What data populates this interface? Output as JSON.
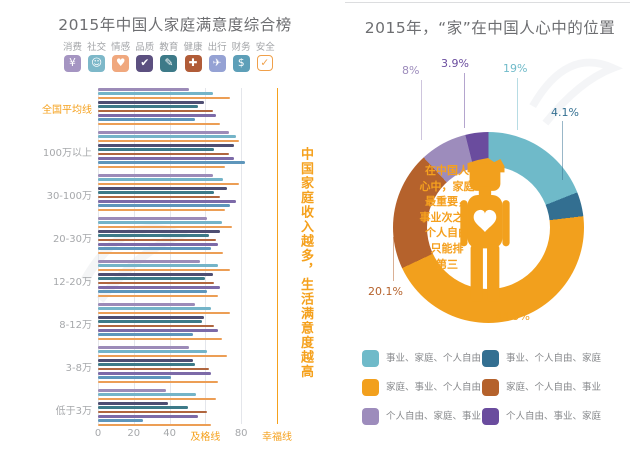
{
  "left_chart": {
    "icons": [
      {
        "name": "money-icon",
        "glyph": "¥",
        "tile_color": "#a595c2"
      },
      {
        "name": "people-icon",
        "glyph": "☺",
        "tile_color": "#7db8c9"
      },
      {
        "name": "hearts-icon",
        "glyph": "♥",
        "tile_color": "#f0a87e"
      },
      {
        "name": "thumbs-up-icon",
        "glyph": "✔",
        "tile_color": "#5c5080"
      },
      {
        "name": "graduation-icon",
        "glyph": "✎",
        "tile_color": "#3d7a88"
      },
      {
        "name": "stethoscope-icon",
        "glyph": "✚",
        "tile_color": "#b15c38"
      },
      {
        "name": "airplane-icon",
        "glyph": "✈",
        "tile_color": "#95a2d4"
      },
      {
        "name": "piggy-bank-icon",
        "glyph": "$",
        "tile_color": "#5d9fb8"
      },
      {
        "name": "shield-icon",
        "glyph": "✓",
        "tile_color": "outline"
      }
    ]
  },
  "right_chart": {
    "center_text_display": "在中国人\n心中，家庭\n最重要，\n事业次之，\n个人自由\n只能排\n第三"
  },
  "chart_data": [
    {
      "type": "bar",
      "orientation": "horizontal",
      "title": "2015年中国人家庭满意度综合榜",
      "annotation": "中国家庭收入越多，生活满意度越高",
      "xlim": [
        0,
        100
      ],
      "grid": true,
      "x_ticks": [
        {
          "value": 0,
          "label": "0"
        },
        {
          "value": 20,
          "label": "20"
        },
        {
          "value": 40,
          "label": "40"
        },
        {
          "value": 60,
          "label": "及格线",
          "accent": true
        },
        {
          "value": 80,
          "label": "80"
        },
        {
          "value": 100,
          "label": "幸福线",
          "accent": true,
          "accent_line": true
        }
      ],
      "groups": [
        "全国平均线",
        "100万以上",
        "30-100万",
        "20-30万",
        "12-20万",
        "8-12万",
        "3-8万",
        "低于3万"
      ],
      "highlight_group": "全国平均线",
      "series": [
        {
          "name": "消费",
          "color": "#9c8bb8",
          "values": [
            51,
            73,
            64,
            61,
            57,
            54,
            51,
            38
          ]
        },
        {
          "name": "社交",
          "color": "#74b4c8",
          "values": [
            64,
            77,
            70,
            69,
            67,
            63,
            61,
            55
          ]
        },
        {
          "name": "情感",
          "color": "#ec9e55",
          "values": [
            74,
            79,
            79,
            75,
            74,
            74,
            72,
            66
          ]
        },
        {
          "name": "品质",
          "color": "#4e4e72",
          "values": [
            59,
            76,
            72,
            68,
            64,
            59,
            53,
            39
          ]
        },
        {
          "name": "教育",
          "color": "#3d7a88",
          "values": [
            56,
            65,
            65,
            62,
            60,
            58,
            54,
            50
          ]
        },
        {
          "name": "健康",
          "color": "#b0663f",
          "values": [
            64,
            73,
            68,
            66,
            65,
            65,
            62,
            61
          ]
        },
        {
          "name": "出行",
          "color": "#7c6aa8",
          "values": [
            66,
            76,
            77,
            67,
            68,
            67,
            63,
            56
          ]
        },
        {
          "name": "财务",
          "color": "#5e96bb",
          "values": [
            54,
            82,
            74,
            63,
            61,
            53,
            41,
            25
          ]
        },
        {
          "name": "安全",
          "color": "#ec9e55",
          "values": [
            68,
            71,
            71,
            70,
            67,
            69,
            67,
            63
          ]
        }
      ]
    },
    {
      "type": "pie",
      "title": "2015年，“家”在中国人心中的位置",
      "center_text": "在中国人心中，家庭最重要，事业次之，个人自由只能排第三",
      "slices": [
        {
          "label": "事业、家庭、个人自由",
          "value": 19,
          "pct": "19%",
          "color": "#6fbac9"
        },
        {
          "label": "事业、个人自由、家庭",
          "value": 4.1,
          "pct": "4.1%",
          "color": "#336f91"
        },
        {
          "label": "家庭、事业、个人自由",
          "value": 44.9,
          "pct": "44.9%",
          "color": "#f2a01d"
        },
        {
          "label": "家庭、个人自由、事业",
          "value": 20.1,
          "pct": "20.1%",
          "color": "#b5622c"
        },
        {
          "label": "个人自由、家庭、事业",
          "value": 8,
          "pct": "8%",
          "color": "#9d8cbc"
        },
        {
          "label": "个人自由、事业、家庭",
          "value": 3.9,
          "pct": "3.9%",
          "color": "#6a4c9e"
        }
      ],
      "legend_position": "bottom"
    }
  ]
}
